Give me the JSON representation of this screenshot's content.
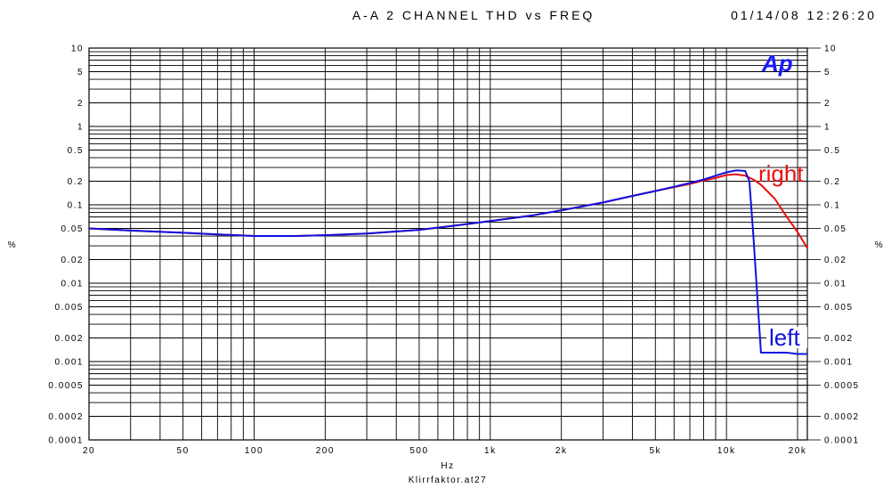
{
  "chart_data": {
    "type": "line",
    "title": "A-A 2 CHANNEL  THD vs FREQ",
    "timestamp": "01/14/08 12:26:20",
    "logo_text": "Ap",
    "xlabel": "Hz",
    "footer": "Klirrfaktor.at27",
    "ylabel_left": "%",
    "ylabel_right": "%",
    "x_scale": "log",
    "y_scale": "log",
    "xlim": [
      20,
      22000
    ],
    "ylim": [
      0.0001,
      10
    ],
    "grid": true,
    "x_ticks": [
      {
        "value": 20,
        "label": "20"
      },
      {
        "value": 50,
        "label": "50"
      },
      {
        "value": 100,
        "label": "100"
      },
      {
        "value": 200,
        "label": "200"
      },
      {
        "value": 500,
        "label": "500"
      },
      {
        "value": 1000,
        "label": "1k"
      },
      {
        "value": 2000,
        "label": "2k"
      },
      {
        "value": 5000,
        "label": "5k"
      },
      {
        "value": 10000,
        "label": "10k"
      },
      {
        "value": 20000,
        "label": "20k"
      }
    ],
    "y_ticks": [
      {
        "value": 10,
        "label": "10"
      },
      {
        "value": 5,
        "label": "5"
      },
      {
        "value": 2,
        "label": "2"
      },
      {
        "value": 1,
        "label": "1"
      },
      {
        "value": 0.5,
        "label": "0.5"
      },
      {
        "value": 0.2,
        "label": "0.2"
      },
      {
        "value": 0.1,
        "label": "0.1"
      },
      {
        "value": 0.05,
        "label": "0.05"
      },
      {
        "value": 0.02,
        "label": "0.02"
      },
      {
        "value": 0.01,
        "label": "0.01"
      },
      {
        "value": 0.005,
        "label": "0.005"
      },
      {
        "value": 0.002,
        "label": "0.002"
      },
      {
        "value": 0.001,
        "label": "0.001"
      },
      {
        "value": 0.0005,
        "label": "0.0005"
      },
      {
        "value": 0.0002,
        "label": "0.0002"
      },
      {
        "value": 0.0001,
        "label": "0.0001"
      }
    ],
    "series": [
      {
        "name": "right",
        "color": "#e81010",
        "points": [
          [
            20,
            0.05
          ],
          [
            30,
            0.047
          ],
          [
            50,
            0.044
          ],
          [
            70,
            0.042
          ],
          [
            100,
            0.04
          ],
          [
            150,
            0.04
          ],
          [
            200,
            0.041
          ],
          [
            300,
            0.043
          ],
          [
            500,
            0.048
          ],
          [
            700,
            0.054
          ],
          [
            1000,
            0.062
          ],
          [
            1500,
            0.073
          ],
          [
            2000,
            0.085
          ],
          [
            3000,
            0.107
          ],
          [
            4000,
            0.13
          ],
          [
            5000,
            0.15
          ],
          [
            6000,
            0.168
          ],
          [
            7000,
            0.185
          ],
          [
            8000,
            0.205
          ],
          [
            9000,
            0.22
          ],
          [
            10000,
            0.24
          ],
          [
            11000,
            0.245
          ],
          [
            12000,
            0.235
          ],
          [
            13000,
            0.21
          ],
          [
            14000,
            0.18
          ],
          [
            16000,
            0.12
          ],
          [
            18000,
            0.07
          ],
          [
            20000,
            0.045
          ],
          [
            22000,
            0.028
          ]
        ]
      },
      {
        "name": "left",
        "color": "#1010e0",
        "points": [
          [
            20,
            0.05
          ],
          [
            30,
            0.047
          ],
          [
            50,
            0.044
          ],
          [
            70,
            0.042
          ],
          [
            100,
            0.04
          ],
          [
            150,
            0.04
          ],
          [
            200,
            0.041
          ],
          [
            300,
            0.043
          ],
          [
            500,
            0.048
          ],
          [
            700,
            0.054
          ],
          [
            1000,
            0.062
          ],
          [
            1500,
            0.073
          ],
          [
            2000,
            0.085
          ],
          [
            3000,
            0.107
          ],
          [
            4000,
            0.13
          ],
          [
            5000,
            0.15
          ],
          [
            6000,
            0.17
          ],
          [
            7000,
            0.19
          ],
          [
            8000,
            0.21
          ],
          [
            9000,
            0.235
          ],
          [
            10000,
            0.26
          ],
          [
            11000,
            0.275
          ],
          [
            12000,
            0.27
          ],
          [
            12500,
            0.2
          ],
          [
            13000,
            0.04
          ],
          [
            14000,
            0.0013
          ],
          [
            16000,
            0.0013
          ],
          [
            18000,
            0.0013
          ],
          [
            20000,
            0.00125
          ],
          [
            22000,
            0.00125
          ]
        ]
      }
    ]
  }
}
